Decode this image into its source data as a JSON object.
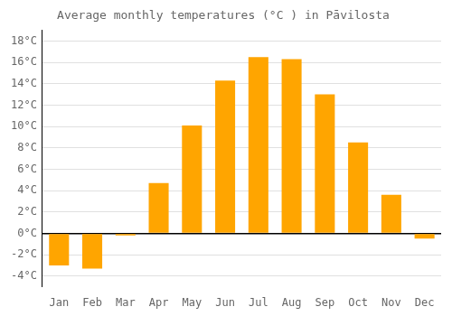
{
  "chart_data": {
    "type": "bar",
    "title": "Average monthly temperatures (°C ) in Pāvilosta",
    "categories": [
      "Jan",
      "Feb",
      "Mar",
      "Apr",
      "May",
      "Jun",
      "Jul",
      "Aug",
      "Sep",
      "Oct",
      "Nov",
      "Dec"
    ],
    "values": [
      -3.0,
      -3.3,
      -0.2,
      4.7,
      10.1,
      14.3,
      16.5,
      16.3,
      13.0,
      8.5,
      3.6,
      -0.5
    ],
    "color": "#FFA500",
    "ylim": [
      -5,
      19
    ],
    "yticks": [
      {
        "value": -4,
        "label": "-4°C"
      },
      {
        "value": -2,
        "label": "-2°C"
      },
      {
        "value": 0,
        "label": "0°C"
      },
      {
        "value": 2,
        "label": "2°C"
      },
      {
        "value": 4,
        "label": "4°C"
      },
      {
        "value": 6,
        "label": "6°C"
      },
      {
        "value": 8,
        "label": "8°C"
      },
      {
        "value": 10,
        "label": "10°C"
      },
      {
        "value": 12,
        "label": "12°C"
      },
      {
        "value": 14,
        "label": "14°C"
      },
      {
        "value": 16,
        "label": "16°C"
      },
      {
        "value": 18,
        "label": "18°C"
      }
    ],
    "grid": true
  }
}
